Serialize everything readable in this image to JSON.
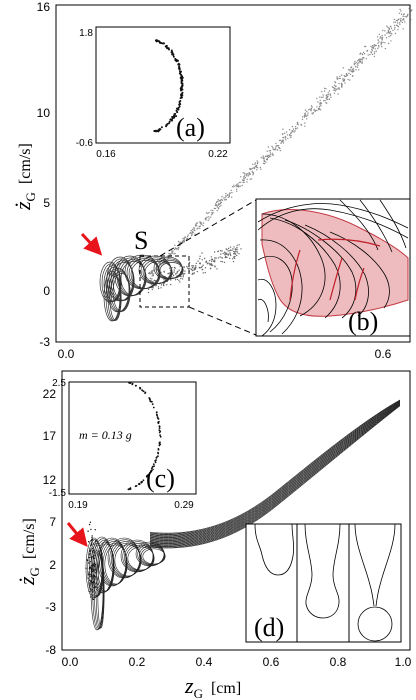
{
  "chart_data": [
    {
      "type": "scatter",
      "panel": "top",
      "ylabel": "ż",
      "ylabel_sub": "G",
      "ylabel_unit": "[cm/s]",
      "xlim": [
        0.0,
        0.65
      ],
      "ylim": [
        -3,
        16
      ],
      "xticks": [
        "0.0",
        "0.6"
      ],
      "yticks": [
        "16",
        "10",
        "5",
        "0",
        "-3"
      ],
      "marker_label": "S",
      "inset_a": {
        "label": "(a)",
        "xticks": [
          "0.16",
          "0.22"
        ],
        "yticks": [
          "1.8",
          "-0.6"
        ],
        "xlim": [
          0.16,
          0.22
        ],
        "ylim": [
          -0.6,
          1.8
        ]
      },
      "inset_b": {
        "label": "(b)"
      }
    },
    {
      "type": "scatter",
      "panel": "bottom",
      "xlabel": "z",
      "xlabel_sub": "G",
      "xlabel_unit": "[cm]",
      "ylabel": "ż",
      "ylabel_sub": "G",
      "ylabel_unit": "[cm/s]",
      "xlim": [
        0.0,
        1.0
      ],
      "ylim": [
        -8,
        22
      ],
      "xticks": [
        "0.0",
        "0.2",
        "0.4",
        "0.6",
        "0.8",
        "1.0"
      ],
      "yticks": [
        "22",
        "17",
        "12",
        "7",
        "2",
        "-3",
        "-8"
      ],
      "inset_c": {
        "label": "(c)",
        "note": "m = 0.13 g",
        "xticks": [
          "0.19",
          "0.29"
        ],
        "yticks": [
          "2.5",
          "-1.5"
        ],
        "xlim": [
          0.19,
          0.29
        ],
        "ylim": [
          -1.5,
          2.5
        ]
      },
      "inset_d": {
        "label": "(d)"
      }
    }
  ],
  "colors": {
    "arrow": "#e8141b",
    "shade": "#e8a5a8",
    "ink": "#000000",
    "cloud": "#8a8a8a"
  }
}
